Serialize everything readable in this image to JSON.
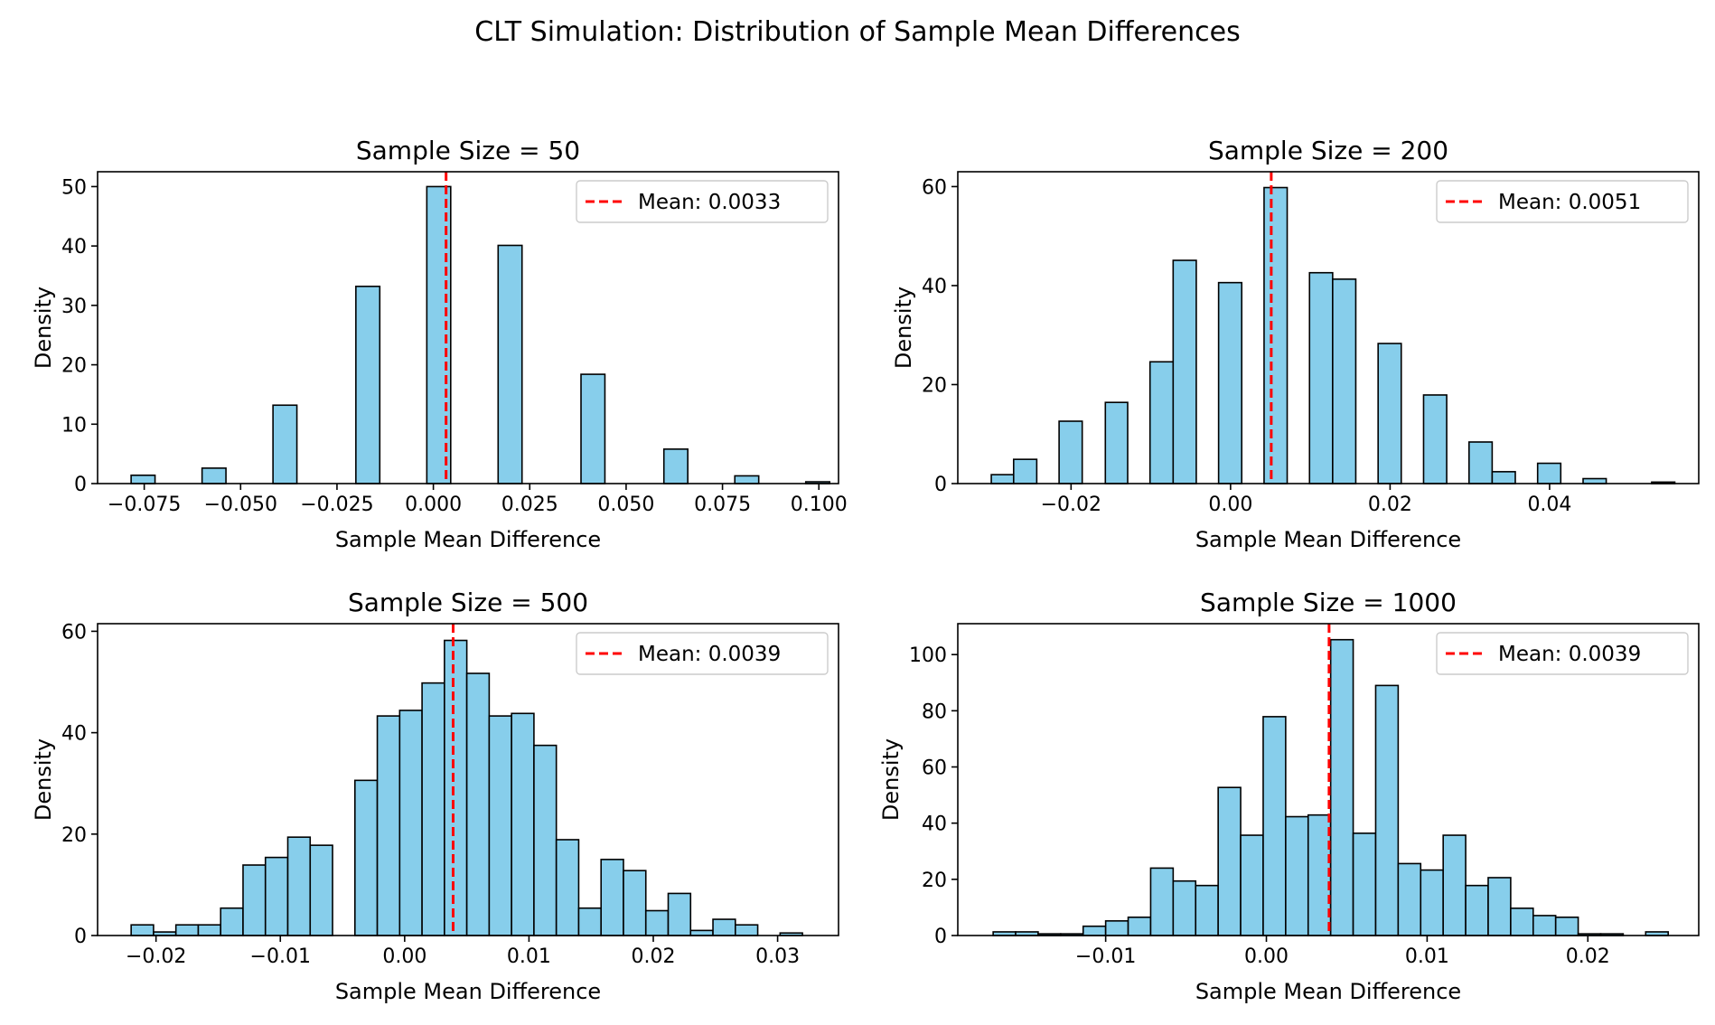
{
  "figure": {
    "title": "CLT Simulation: Distribution of Sample Mean Differences"
  },
  "colors": {
    "bar_fill": "#87ceeb",
    "bar_edge": "#000000",
    "mean_line": "#ff0000"
  },
  "chart_data": [
    {
      "type": "bar",
      "subtype": "histogram",
      "title": "Sample Size = 50",
      "xlabel": "Sample Mean Difference",
      "ylabel": "Density",
      "xlim": [
        -0.0871,
        0.1051
      ],
      "ylim": [
        0,
        52.5
      ],
      "xticks": [
        -0.075,
        -0.05,
        -0.025,
        0.0,
        0.025,
        0.05,
        0.075,
        0.1
      ],
      "xtick_labels": [
        "−0.075",
        "−0.050",
        "−0.025",
        "0.000",
        "0.025",
        "0.050",
        "0.075",
        "0.100"
      ],
      "yticks": [
        0,
        10,
        20,
        30,
        40,
        50
      ],
      "ytick_labels": [
        "0",
        "10",
        "20",
        "30",
        "40",
        "50"
      ],
      "bins": [
        {
          "x0": -0.0784,
          "x1": -0.0722,
          "height": 1.4
        },
        {
          "x0": -0.06,
          "x1": -0.0538,
          "height": 2.6
        },
        {
          "x0": -0.0416,
          "x1": -0.0354,
          "height": 13.2
        },
        {
          "x0": -0.0201,
          "x1": -0.0139,
          "height": 33.2
        },
        {
          "x0": -0.0017,
          "x1": 0.0045,
          "height": 50.0
        },
        {
          "x0": 0.0168,
          "x1": 0.023,
          "height": 40.1
        },
        {
          "x0": 0.0383,
          "x1": 0.0445,
          "height": 18.4
        },
        {
          "x0": 0.0598,
          "x1": 0.066,
          "height": 5.8
        },
        {
          "x0": 0.0782,
          "x1": 0.0844,
          "height": 1.3
        },
        {
          "x0": 0.0966,
          "x1": 0.1028,
          "height": 0.3
        }
      ],
      "mean": 0.0033,
      "legend": {
        "label": "Mean: 0.0033",
        "position": "upper right"
      }
    },
    {
      "type": "bar",
      "subtype": "histogram",
      "title": "Sample Size = 200",
      "xlabel": "Sample Mean Difference",
      "ylabel": "Density",
      "xlim": [
        -0.0342,
        0.0587
      ],
      "ylim": [
        0,
        63
      ],
      "xticks": [
        -0.02,
        0.0,
        0.02,
        0.04
      ],
      "xtick_labels": [
        "−0.02",
        "0.00",
        "0.02",
        "0.04"
      ],
      "yticks": [
        0,
        20,
        40,
        60
      ],
      "ytick_labels": [
        "0",
        "20",
        "40",
        "60"
      ],
      "bins": [
        {
          "x0": -0.03,
          "x1": -0.0272,
          "height": 1.8
        },
        {
          "x0": -0.0272,
          "x1": -0.0243,
          "height": 4.9
        },
        {
          "x0": -0.0215,
          "x1": -0.0186,
          "height": 12.6
        },
        {
          "x0": -0.0157,
          "x1": -0.0129,
          "height": 16.4
        },
        {
          "x0": -0.0101,
          "x1": -0.0072,
          "height": 24.6
        },
        {
          "x0": -0.0072,
          "x1": -0.0043,
          "height": 45.1
        },
        {
          "x0": -0.0015,
          "x1": 0.0014,
          "height": 40.6
        },
        {
          "x0": 0.0042,
          "x1": 0.0071,
          "height": 59.8
        },
        {
          "x0": 0.0099,
          "x1": 0.0128,
          "height": 42.6
        },
        {
          "x0": 0.0128,
          "x1": 0.0157,
          "height": 41.3
        },
        {
          "x0": 0.0185,
          "x1": 0.0214,
          "height": 28.3
        },
        {
          "x0": 0.0242,
          "x1": 0.0271,
          "height": 17.9
        },
        {
          "x0": 0.0299,
          "x1": 0.0328,
          "height": 8.4
        },
        {
          "x0": 0.0328,
          "x1": 0.0357,
          "height": 2.4
        },
        {
          "x0": 0.0385,
          "x1": 0.0414,
          "height": 4.1
        },
        {
          "x0": 0.0442,
          "x1": 0.0471,
          "height": 1.0
        },
        {
          "x0": 0.0528,
          "x1": 0.0557,
          "height": 0.3
        }
      ],
      "mean": 0.0051,
      "legend": {
        "label": "Mean: 0.0051",
        "position": "upper right"
      }
    },
    {
      "type": "bar",
      "subtype": "histogram",
      "title": "Sample Size = 500",
      "xlabel": "Sample Mean Difference",
      "ylabel": "Density",
      "xlim": [
        -0.0247,
        0.0349
      ],
      "ylim": [
        0,
        61.5
      ],
      "xticks": [
        -0.02,
        -0.01,
        0.0,
        0.01,
        0.02,
        0.03
      ],
      "xtick_labels": [
        "−0.02",
        "−0.01",
        "0.00",
        "0.01",
        "0.02",
        "0.03"
      ],
      "yticks": [
        0,
        20,
        40,
        60
      ],
      "ytick_labels": [
        "0",
        "20",
        "40",
        "60"
      ],
      "bins": [
        {
          "x0": -0.022,
          "x1": -0.0202,
          "height": 2.1
        },
        {
          "x0": -0.0202,
          "x1": -0.0184,
          "height": 0.7
        },
        {
          "x0": -0.0184,
          "x1": -0.0166,
          "height": 2.1
        },
        {
          "x0": -0.0166,
          "x1": -0.0148,
          "height": 2.1
        },
        {
          "x0": -0.0148,
          "x1": -0.013,
          "height": 5.4
        },
        {
          "x0": -0.013,
          "x1": -0.0112,
          "height": 13.9
        },
        {
          "x0": -0.0112,
          "x1": -0.0094,
          "height": 15.4
        },
        {
          "x0": -0.0094,
          "x1": -0.0076,
          "height": 19.4
        },
        {
          "x0": -0.0076,
          "x1": -0.0058,
          "height": 17.8
        },
        {
          "x0": -0.004,
          "x1": -0.0022,
          "height": 30.6
        },
        {
          "x0": -0.0022,
          "x1": -0.0004,
          "height": 43.3
        },
        {
          "x0": -0.0004,
          "x1": 0.0014,
          "height": 44.4
        },
        {
          "x0": 0.0014,
          "x1": 0.0032,
          "height": 49.8
        },
        {
          "x0": 0.0032,
          "x1": 0.005,
          "height": 58.2
        },
        {
          "x0": 0.005,
          "x1": 0.0068,
          "height": 51.7
        },
        {
          "x0": 0.0068,
          "x1": 0.0086,
          "height": 43.3
        },
        {
          "x0": 0.0086,
          "x1": 0.0104,
          "height": 43.8
        },
        {
          "x0": 0.0104,
          "x1": 0.0122,
          "height": 37.5
        },
        {
          "x0": 0.0122,
          "x1": 0.014,
          "height": 18.9
        },
        {
          "x0": 0.014,
          "x1": 0.0158,
          "height": 5.4
        },
        {
          "x0": 0.0158,
          "x1": 0.0176,
          "height": 15.0
        },
        {
          "x0": 0.0176,
          "x1": 0.0194,
          "height": 12.8
        },
        {
          "x0": 0.0194,
          "x1": 0.0212,
          "height": 4.9
        },
        {
          "x0": 0.0212,
          "x1": 0.023,
          "height": 8.3
        },
        {
          "x0": 0.023,
          "x1": 0.0248,
          "height": 1.0
        },
        {
          "x0": 0.0248,
          "x1": 0.0266,
          "height": 3.2
        },
        {
          "x0": 0.0266,
          "x1": 0.0284,
          "height": 2.1
        },
        {
          "x0": 0.0302,
          "x1": 0.032,
          "height": 0.5
        }
      ],
      "mean": 0.0039,
      "legend": {
        "label": "Mean: 0.0039",
        "position": "upper right"
      }
    },
    {
      "type": "bar",
      "subtype": "histogram",
      "title": "Sample Size = 1000",
      "xlabel": "Sample Mean Difference",
      "ylabel": "Density",
      "xlim": [
        -0.0192,
        0.0269
      ],
      "ylim": [
        0,
        111
      ],
      "xticks": [
        -0.01,
        0.0,
        0.01,
        0.02
      ],
      "xtick_labels": [
        "−0.01",
        "0.00",
        "0.01",
        "0.02"
      ],
      "yticks": [
        0,
        20,
        40,
        60,
        80,
        100
      ],
      "ytick_labels": [
        "0",
        "20",
        "40",
        "60",
        "80",
        "100"
      ],
      "bins": [
        {
          "x0": -0.017,
          "x1": -0.0156,
          "height": 1.3
        },
        {
          "x0": -0.0156,
          "x1": -0.0142,
          "height": 1.3
        },
        {
          "x0": -0.0142,
          "x1": -0.0128,
          "height": 0.6
        },
        {
          "x0": -0.0128,
          "x1": -0.0114,
          "height": 0.6
        },
        {
          "x0": -0.0114,
          "x1": -0.01,
          "height": 3.3
        },
        {
          "x0": -0.01,
          "x1": -0.0086,
          "height": 5.2
        },
        {
          "x0": -0.0086,
          "x1": -0.0072,
          "height": 6.5
        },
        {
          "x0": -0.0072,
          "x1": -0.0058,
          "height": 24.0
        },
        {
          "x0": -0.0058,
          "x1": -0.0044,
          "height": 19.4
        },
        {
          "x0": -0.0044,
          "x1": -0.003,
          "height": 17.8
        },
        {
          "x0": -0.003,
          "x1": -0.0016,
          "height": 52.7
        },
        {
          "x0": -0.0016,
          "x1": -0.0002,
          "height": 35.7
        },
        {
          "x0": -0.0002,
          "x1": 0.0012,
          "height": 77.9
        },
        {
          "x0": 0.0012,
          "x1": 0.0026,
          "height": 42.3
        },
        {
          "x0": 0.0026,
          "x1": 0.004,
          "height": 42.9
        },
        {
          "x0": 0.004,
          "x1": 0.0054,
          "height": 105.3
        },
        {
          "x0": 0.0054,
          "x1": 0.0068,
          "height": 36.4
        },
        {
          "x0": 0.0068,
          "x1": 0.0082,
          "height": 89.0
        },
        {
          "x0": 0.0082,
          "x1": 0.0096,
          "height": 25.6
        },
        {
          "x0": 0.0096,
          "x1": 0.011,
          "height": 23.3
        },
        {
          "x0": 0.011,
          "x1": 0.0124,
          "height": 35.7
        },
        {
          "x0": 0.0124,
          "x1": 0.0138,
          "height": 17.8
        },
        {
          "x0": 0.0138,
          "x1": 0.0152,
          "height": 20.6
        },
        {
          "x0": 0.0152,
          "x1": 0.0166,
          "height": 9.7
        },
        {
          "x0": 0.0166,
          "x1": 0.018,
          "height": 7.1
        },
        {
          "x0": 0.018,
          "x1": 0.0194,
          "height": 6.5
        },
        {
          "x0": 0.0194,
          "x1": 0.0208,
          "height": 0.6
        },
        {
          "x0": 0.0208,
          "x1": 0.0222,
          "height": 0.6
        },
        {
          "x0": 0.0236,
          "x1": 0.025,
          "height": 1.3
        }
      ],
      "mean": 0.0039,
      "legend": {
        "label": "Mean: 0.0039",
        "position": "upper right"
      }
    }
  ]
}
